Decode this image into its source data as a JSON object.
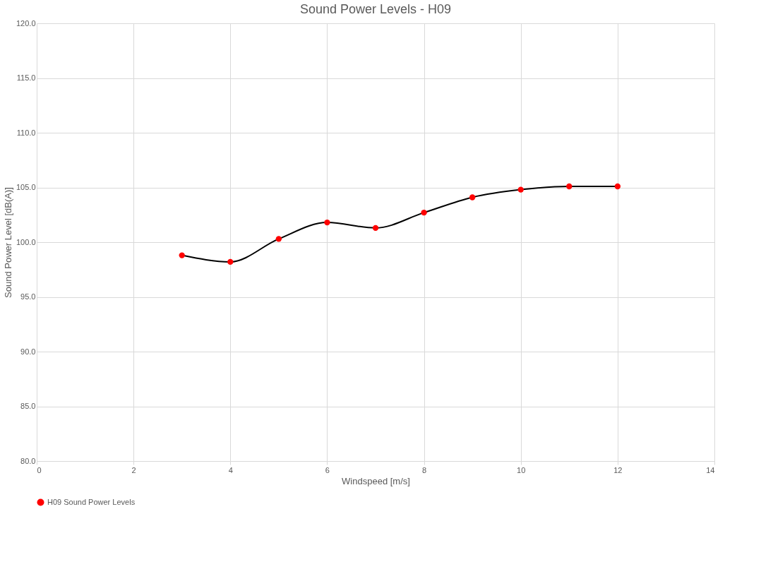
{
  "chart_data": {
    "type": "line",
    "title": "Sound Power Levels - H09",
    "xlabel": "Windspeed [m/s]",
    "ylabel": "Sound Power Level [dB(A)]",
    "x": [
      3,
      4,
      5,
      6,
      7,
      8,
      9,
      10,
      11,
      12
    ],
    "series": [
      {
        "name": "H09 Sound Power Levels",
        "color": "#000000",
        "colors": [
          "#ff0000",
          "#ff0000",
          "#ff0000",
          "#ff0000",
          "#ff0000",
          "#ff0000",
          "#ff0000",
          "#ff0000",
          "#ff0000",
          "#ff0000"
        ],
        "values": [
          98.8,
          98.2,
          100.3,
          101.8,
          101.3,
          102.7,
          104.1,
          104.8,
          105.1,
          105.1
        ]
      }
    ],
    "xlim": [
      0,
      14
    ],
    "xticks": [
      0,
      2,
      4,
      6,
      8,
      10,
      12,
      14
    ],
    "ylim": [
      80,
      120
    ],
    "yticks": [
      {
        "value": 80,
        "label": "80.0"
      },
      {
        "value": 85,
        "label": "85.0"
      },
      {
        "value": 90,
        "label": "90.0"
      },
      {
        "value": 95,
        "label": "95.0"
      },
      {
        "value": 100,
        "label": "100.0"
      },
      {
        "value": 105,
        "label": "105.0"
      },
      {
        "value": 110,
        "label": "110.0"
      },
      {
        "value": 115,
        "label": "115.0"
      },
      {
        "value": 120,
        "label": "120.0"
      }
    ],
    "grid": true,
    "legend": "bottom",
    "marker": "circle",
    "line_style": "solid"
  }
}
